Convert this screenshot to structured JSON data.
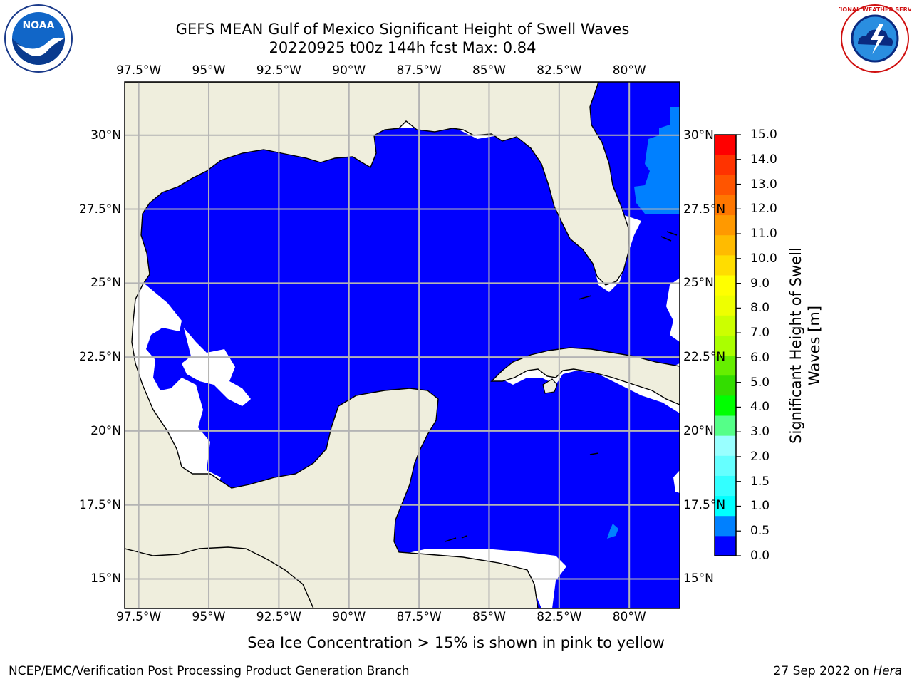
{
  "title": {
    "line1": "GEFS MEAN Gulf of Mexico Significant Height of Swell Waves",
    "line2": "20220925 t00z 144h fcst   Max: 0.84"
  },
  "map": {
    "lon_range": [
      -98.0,
      -78.2
    ],
    "lat_range": [
      14.0,
      31.8
    ],
    "lon_ticks": [
      "97.5°W",
      "95°W",
      "92.5°W",
      "90°W",
      "87.5°W",
      "85°W",
      "82.5°W",
      "80°W"
    ],
    "lon_values": [
      -97.5,
      -95,
      -92.5,
      -90,
      -87.5,
      -85,
      -82.5,
      -80
    ],
    "lat_ticks": [
      "30°N",
      "27.5°N",
      "25°N",
      "22.5°N",
      "20°N",
      "17.5°N",
      "15°N"
    ],
    "lat_values": [
      30,
      27.5,
      25,
      22.5,
      20,
      17.5,
      15
    ],
    "right_lat_ticks": [
      "30°N",
      "27.5°N",
      "25°N",
      "22.5°N",
      "20°N",
      "17.5°N",
      "15°N"
    ],
    "colors": {
      "ocean": "#0000ff",
      "land": "#efeedd",
      "swell_0_5_1": "#0080ff",
      "no_data": "#ffffff",
      "grid": "#b4b4b4"
    }
  },
  "colorbar": {
    "label": "Significant Height of Swell Waves [m]",
    "ticks": [
      "15.0",
      "14.0",
      "13.0",
      "12.0",
      "11.0",
      "10.0",
      "9.0",
      "8.0",
      "7.0",
      "6.0",
      "5.0",
      "4.0",
      "3.0",
      "2.0",
      "1.5",
      "1.0",
      "0.5",
      "0.0"
    ],
    "colors": [
      "#0000ff",
      "#0080ff",
      "#00ffff",
      "#33ffff",
      "#66ffff",
      "#99ffff",
      "#55ff88",
      "#00ff00",
      "#33dd00",
      "#66ee00",
      "#aaff00",
      "#ccff00",
      "#eeff00",
      "#ffff00",
      "#ffdd00",
      "#ffbb00",
      "#ff9900",
      "#ff7700",
      "#ff5500",
      "#ff3300",
      "#ff0000"
    ]
  },
  "note": "Sea Ice Concentration > 15% is shown in pink to yellow",
  "footer": {
    "left": "NCEP/EMC/Verification Post Processing Product Generation Branch",
    "right_date": "27 Sep 2022 on ",
    "right_machine": "Hera"
  },
  "logos": {
    "noaa_text": "NOAA",
    "nws_text": "NATIONAL WEATHER SERVICE"
  }
}
